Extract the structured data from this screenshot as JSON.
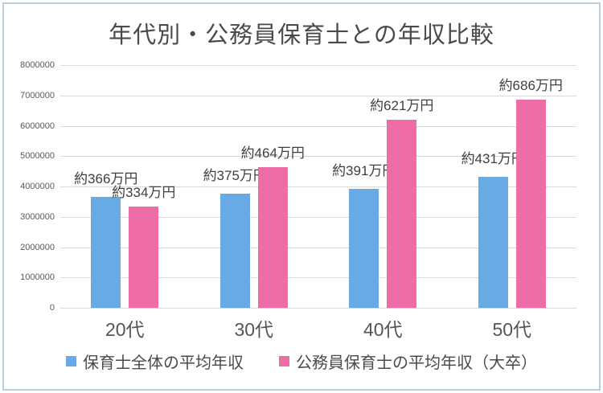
{
  "card": {
    "border_color": "#b4d0e8",
    "background": "#ffffff"
  },
  "chart_data": {
    "type": "bar",
    "title": "年代別・公務員保育士との年収比較",
    "title_color": "#4a4a4a",
    "categories": [
      "20代",
      "30代",
      "40代",
      "50代"
    ],
    "series": [
      {
        "name": "保育士全体の平均年収",
        "color": "#68aae3",
        "values": [
          3660000,
          3750000,
          3910000,
          4310000
        ],
        "value_labels": [
          "約366万円",
          "約375万円",
          "約391万円",
          "約431万円"
        ]
      },
      {
        "name": "公務員保育士の平均年収（大卒）",
        "color": "#ee6da7",
        "values": [
          3340000,
          4640000,
          6210000,
          6860000
        ],
        "value_labels": [
          "約334万円",
          "約464万円",
          "約621万円",
          "約686万円"
        ]
      }
    ],
    "ylim": [
      0,
      8000000
    ],
    "ytick_labels": [
      "8000000",
      "7000000",
      "6000000",
      "5000000",
      "4000000",
      "3000000",
      "2000000",
      "1000000",
      "0"
    ],
    "grid": true,
    "gridline_color": "#d9d9d9",
    "legend_position": "bottom"
  }
}
